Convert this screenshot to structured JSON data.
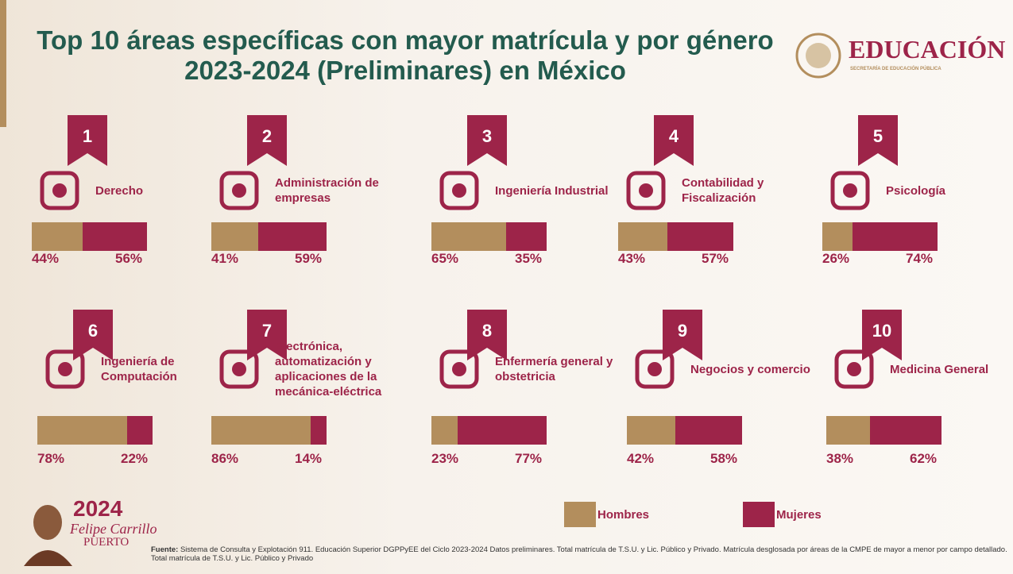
{
  "chart_data": {
    "type": "stacked-bar",
    "title": "Top 10 áreas específicas con mayor matrícula y por género 2023-2024 (Preliminares) en México",
    "ranks": [
      1,
      2,
      3,
      4,
      5,
      6,
      7,
      8,
      9,
      10
    ],
    "categories": [
      "Derecho",
      "Administración de empresas",
      "Ingeniería Industrial",
      "Contabilidad y Fiscalización",
      "Psicología",
      "Ingeniería de Computación",
      "Electrónica, automatización y aplicaciones de la mecánica-eléctrica",
      "Enfermería general y obstetricia",
      "Negocios y comercio",
      "Medicina General"
    ],
    "series": [
      {
        "name": "Hombres",
        "color": "#b38e5d",
        "values": [
          44,
          41,
          65,
          43,
          26,
          78,
          86,
          23,
          42,
          38
        ],
        "value_labels": [
          "44%",
          "41%",
          "65%",
          "43%",
          "26%",
          "78%",
          "86%",
          "23%",
          "42%",
          "38%"
        ]
      },
      {
        "name": "Mujeres",
        "color": "#9d2449",
        "values": [
          56,
          59,
          35,
          57,
          74,
          22,
          14,
          77,
          58,
          62
        ],
        "value_labels": [
          "56%",
          "59%",
          "35%",
          "57%",
          "74%",
          "22%",
          "14%",
          "77%",
          "58%",
          "62%"
        ]
      }
    ],
    "logo": {
      "title": "EDUCACIÓN",
      "subtitle": "SECRETARÍA DE EDUCACIÓN PÚBLICA"
    },
    "footer_logo": {
      "year": "2024",
      "name": "Felipe Carrillo",
      "surname": "PUERTO"
    },
    "source": {
      "label": "Fuente:",
      "text": "Sistema de Consulta y Explotación 911. Educación Superior DGPPyEE del Ciclo 2023-2024 Datos preliminares. Total matrícula de T.S.U. y Lic. Público y Privado. Matrícula desglosada por áreas de la CMPE de mayor a menor por campo detallado. Total matrícula de T.S.U. y Lic. Público y Privado"
    }
  }
}
